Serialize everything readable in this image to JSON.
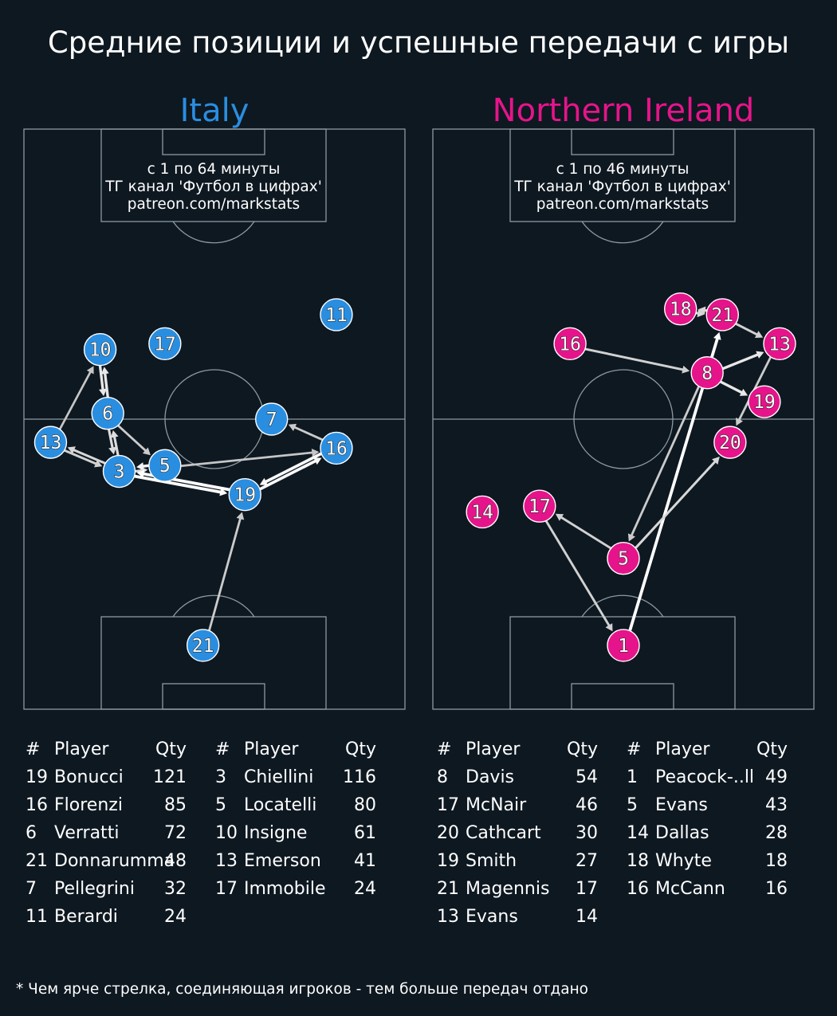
{
  "title": "Средние позиции и успешные передачи с игры",
  "footnote": "* Чем ярче стрелка, соединяющая игроков - тем больше передач отдано",
  "table_headers": {
    "num": "#",
    "player": "Player",
    "qty": "Qty"
  },
  "chart_data": [
    {
      "type": "scatter",
      "title": "Italy",
      "info_lines": [
        "с 1 по 64 минуты",
        "ТГ канал 'Футбол в цифрах'",
        "patreon.com/markstats"
      ],
      "color": "#2a8ee0",
      "players": [
        {
          "num": "11",
          "x": 0.82,
          "y": 0.68
        },
        {
          "num": "17",
          "x": 0.37,
          "y": 0.63
        },
        {
          "num": "10",
          "x": 0.2,
          "y": 0.62
        },
        {
          "num": "6",
          "x": 0.22,
          "y": 0.51
        },
        {
          "num": "7",
          "x": 0.65,
          "y": 0.5
        },
        {
          "num": "13",
          "x": 0.07,
          "y": 0.46
        },
        {
          "num": "16",
          "x": 0.82,
          "y": 0.45
        },
        {
          "num": "5",
          "x": 0.37,
          "y": 0.42
        },
        {
          "num": "3",
          "x": 0.25,
          "y": 0.41
        },
        {
          "num": "19",
          "x": 0.58,
          "y": 0.37
        },
        {
          "num": "21",
          "x": 0.47,
          "y": 0.11
        }
      ],
      "passes": [
        {
          "from": "21",
          "to": "19",
          "strength": 0.55
        },
        {
          "from": "13",
          "to": "10",
          "strength": 0.5
        },
        {
          "from": "10",
          "to": "6",
          "strength": 0.8
        },
        {
          "from": "6",
          "to": "10",
          "strength": 0.8
        },
        {
          "from": "6",
          "to": "5",
          "strength": 0.55
        },
        {
          "from": "6",
          "to": "3",
          "strength": 0.7
        },
        {
          "from": "3",
          "to": "6",
          "strength": 0.7
        },
        {
          "from": "3",
          "to": "13",
          "strength": 0.65
        },
        {
          "from": "13",
          "to": "3",
          "strength": 0.6
        },
        {
          "from": "3",
          "to": "5",
          "strength": 0.7
        },
        {
          "from": "5",
          "to": "3",
          "strength": 0.9
        },
        {
          "from": "19",
          "to": "3",
          "strength": 1.0
        },
        {
          "from": "3",
          "to": "19",
          "strength": 1.0
        },
        {
          "from": "5",
          "to": "16",
          "strength": 0.5
        },
        {
          "from": "16",
          "to": "7",
          "strength": 0.55
        },
        {
          "from": "19",
          "to": "16",
          "strength": 0.95
        },
        {
          "from": "16",
          "to": "19",
          "strength": 0.95
        }
      ],
      "table": [
        [
          {
            "num": "19",
            "name": "Bonucci",
            "qty": 121
          },
          {
            "num": "16",
            "name": "Florenzi",
            "qty": 85
          },
          {
            "num": "6",
            "name": "Verratti",
            "qty": 72
          },
          {
            "num": "21",
            "name": "Donnarumma",
            "qty": 48
          },
          {
            "num": "7",
            "name": "Pellegrini",
            "qty": 32
          },
          {
            "num": "11",
            "name": "Berardi",
            "qty": 24
          }
        ],
        [
          {
            "num": "3",
            "name": "Chiellini",
            "qty": 116
          },
          {
            "num": "5",
            "name": "Locatelli",
            "qty": 80
          },
          {
            "num": "10",
            "name": "Insigne",
            "qty": 61
          },
          {
            "num": "13",
            "name": "Emerson",
            "qty": 41
          },
          {
            "num": "17",
            "name": "Immobile",
            "qty": 24
          }
        ]
      ]
    },
    {
      "type": "scatter",
      "title": "Northern Ireland",
      "info_lines": [
        "с 1 по 46 минуты",
        "ТГ канал 'Футбол в цифрах'",
        "patreon.com/markstats"
      ],
      "color": "#e6148a",
      "players": [
        {
          "num": "18",
          "x": 0.65,
          "y": 0.69
        },
        {
          "num": "21",
          "x": 0.76,
          "y": 0.68
        },
        {
          "num": "16",
          "x": 0.36,
          "y": 0.63
        },
        {
          "num": "13",
          "x": 0.91,
          "y": 0.63
        },
        {
          "num": "8",
          "x": 0.72,
          "y": 0.58
        },
        {
          "num": "19",
          "x": 0.87,
          "y": 0.53
        },
        {
          "num": "20",
          "x": 0.78,
          "y": 0.46
        },
        {
          "num": "17",
          "x": 0.28,
          "y": 0.35
        },
        {
          "num": "14",
          "x": 0.13,
          "y": 0.34
        },
        {
          "num": "5",
          "x": 0.5,
          "y": 0.26
        },
        {
          "num": "1",
          "x": 0.5,
          "y": 0.11
        }
      ],
      "passes": [
        {
          "from": "1",
          "to": "21",
          "strength": 1.0
        },
        {
          "from": "17",
          "to": "1",
          "strength": 0.6
        },
        {
          "from": "5",
          "to": "17",
          "strength": 0.6
        },
        {
          "from": "5",
          "to": "20",
          "strength": 0.65
        },
        {
          "from": "8",
          "to": "5",
          "strength": 0.55
        },
        {
          "from": "16",
          "to": "8",
          "strength": 0.6
        },
        {
          "from": "8",
          "to": "13",
          "strength": 0.8
        },
        {
          "from": "8",
          "to": "19",
          "strength": 0.8
        },
        {
          "from": "21",
          "to": "18",
          "strength": 0.65
        },
        {
          "from": "18",
          "to": "21",
          "strength": 0.65
        },
        {
          "from": "21",
          "to": "13",
          "strength": 0.6
        },
        {
          "from": "13",
          "to": "20",
          "strength": 0.55
        }
      ],
      "table": [
        [
          {
            "num": "8",
            "name": "Davis",
            "qty": 54
          },
          {
            "num": "17",
            "name": "McNair",
            "qty": 46
          },
          {
            "num": "20",
            "name": "Cathcart",
            "qty": 30
          },
          {
            "num": "19",
            "name": "Smith",
            "qty": 27
          },
          {
            "num": "21",
            "name": "Magennis",
            "qty": 17
          },
          {
            "num": "13",
            "name": "Evans",
            "qty": 14
          }
        ],
        [
          {
            "num": "1",
            "name": "Peacock-..ll",
            "qty": 49
          },
          {
            "num": "5",
            "name": "Evans",
            "qty": 43
          },
          {
            "num": "14",
            "name": "Dallas",
            "qty": 28
          },
          {
            "num": "18",
            "name": "Whyte",
            "qty": 18
          },
          {
            "num": "16",
            "name": "McCann",
            "qty": 16
          }
        ]
      ]
    }
  ]
}
